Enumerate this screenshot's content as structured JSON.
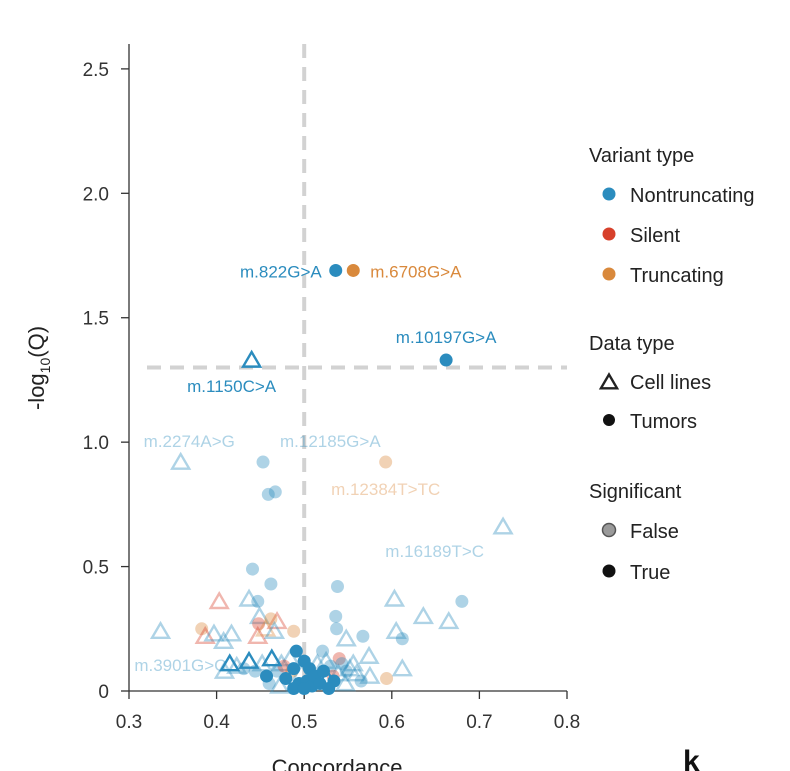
{
  "chart_data": {
    "type": "scatter",
    "xlabel": "Concordance",
    "ylabel_main": "-log",
    "ylabel_sub": "10",
    "ylabel_tail": "(Q)",
    "xlim": [
      0.3,
      0.8
    ],
    "ylim": [
      0,
      2.6
    ],
    "xticks": [
      0.3,
      0.4,
      0.5,
      0.6,
      0.7,
      0.8
    ],
    "xtick_labels": [
      "0.3",
      "0.4",
      "0.5",
      "0.6",
      "0.7",
      "0.8"
    ],
    "yticks": [
      0,
      0.5,
      1.0,
      1.5,
      2.0,
      2.5
    ],
    "ytick_labels": [
      "0",
      "0.5",
      "1.0",
      "1.5",
      "2.0",
      "2.5"
    ],
    "threshold_x": 0.5,
    "threshold_y": 1.3,
    "colors": {
      "Nontruncating": "#2b8cbe",
      "Silent": "#d7402b",
      "Truncating": "#d9893c",
      "legend_outline": "#222222",
      "legend_false": "#9a9a9a",
      "legend_true": "#111111",
      "guide": "#d2d2d2",
      "axis": "#333333"
    },
    "points": [
      {
        "x": 0.536,
        "y": 1.69,
        "type": "Nontruncating",
        "data": "Tumors",
        "sig": true
      },
      {
        "x": 0.556,
        "y": 1.69,
        "type": "Truncating",
        "data": "Tumors",
        "sig": true
      },
      {
        "x": 0.662,
        "y": 1.33,
        "type": "Nontruncating",
        "data": "Tumors",
        "sig": true
      },
      {
        "x": 0.44,
        "y": 1.33,
        "type": "Nontruncating",
        "data": "Cell lines",
        "sig": true
      },
      {
        "x": 0.359,
        "y": 0.92,
        "type": "Nontruncating",
        "data": "Cell lines",
        "sig": false
      },
      {
        "x": 0.453,
        "y": 0.92,
        "type": "Nontruncating",
        "data": "Tumors",
        "sig": false
      },
      {
        "x": 0.593,
        "y": 0.92,
        "type": "Truncating",
        "data": "Tumors",
        "sig": false
      },
      {
        "x": 0.459,
        "y": 0.79,
        "type": "Nontruncating",
        "data": "Tumors",
        "sig": false
      },
      {
        "x": 0.467,
        "y": 0.8,
        "type": "Nontruncating",
        "data": "Tumors",
        "sig": false
      },
      {
        "x": 0.727,
        "y": 0.66,
        "type": "Nontruncating",
        "data": "Cell lines",
        "sig": false
      },
      {
        "x": 0.441,
        "y": 0.49,
        "type": "Nontruncating",
        "data": "Tumors",
        "sig": false
      },
      {
        "x": 0.462,
        "y": 0.43,
        "type": "Nontruncating",
        "data": "Tumors",
        "sig": false
      },
      {
        "x": 0.538,
        "y": 0.42,
        "type": "Nontruncating",
        "data": "Tumors",
        "sig": false
      },
      {
        "x": 0.68,
        "y": 0.36,
        "type": "Nontruncating",
        "data": "Tumors",
        "sig": false
      },
      {
        "x": 0.447,
        "y": 0.36,
        "type": "Nontruncating",
        "data": "Tumors",
        "sig": false
      },
      {
        "x": 0.437,
        "y": 0.37,
        "type": "Nontruncating",
        "data": "Cell lines",
        "sig": false
      },
      {
        "x": 0.403,
        "y": 0.36,
        "type": "Silent",
        "data": "Cell lines",
        "sig": false
      },
      {
        "x": 0.603,
        "y": 0.37,
        "type": "Nontruncating",
        "data": "Cell lines",
        "sig": false
      },
      {
        "x": 0.636,
        "y": 0.3,
        "type": "Nontruncating",
        "data": "Cell lines",
        "sig": false
      },
      {
        "x": 0.665,
        "y": 0.28,
        "type": "Nontruncating",
        "data": "Cell lines",
        "sig": false
      },
      {
        "x": 0.469,
        "y": 0.28,
        "type": "Silent",
        "data": "Cell lines",
        "sig": false
      },
      {
        "x": 0.449,
        "y": 0.3,
        "type": "Nontruncating",
        "data": "Cell lines",
        "sig": false
      },
      {
        "x": 0.536,
        "y": 0.3,
        "type": "Nontruncating",
        "data": "Tumors",
        "sig": false
      },
      {
        "x": 0.448,
        "y": 0.27,
        "type": "Silent",
        "data": "Tumors",
        "sig": false
      },
      {
        "x": 0.462,
        "y": 0.29,
        "type": "Truncating",
        "data": "Tumors",
        "sig": false
      },
      {
        "x": 0.336,
        "y": 0.24,
        "type": "Nontruncating",
        "data": "Cell lines",
        "sig": false
      },
      {
        "x": 0.383,
        "y": 0.25,
        "type": "Truncating",
        "data": "Tumors",
        "sig": false
      },
      {
        "x": 0.387,
        "y": 0.22,
        "type": "Silent",
        "data": "Cell lines",
        "sig": false
      },
      {
        "x": 0.397,
        "y": 0.23,
        "type": "Nontruncating",
        "data": "Cell lines",
        "sig": false
      },
      {
        "x": 0.408,
        "y": 0.2,
        "type": "Nontruncating",
        "data": "Cell lines",
        "sig": false
      },
      {
        "x": 0.417,
        "y": 0.23,
        "type": "Nontruncating",
        "data": "Cell lines",
        "sig": false
      },
      {
        "x": 0.447,
        "y": 0.22,
        "type": "Silent",
        "data": "Cell lines",
        "sig": false
      },
      {
        "x": 0.456,
        "y": 0.25,
        "type": "Truncating",
        "data": "Cell lines",
        "sig": false
      },
      {
        "x": 0.466,
        "y": 0.24,
        "type": "Nontruncating",
        "data": "Cell lines",
        "sig": false
      },
      {
        "x": 0.488,
        "y": 0.24,
        "type": "Truncating",
        "data": "Tumors",
        "sig": false
      },
      {
        "x": 0.537,
        "y": 0.25,
        "type": "Nontruncating",
        "data": "Tumors",
        "sig": false
      },
      {
        "x": 0.548,
        "y": 0.21,
        "type": "Nontruncating",
        "data": "Cell lines",
        "sig": false
      },
      {
        "x": 0.567,
        "y": 0.22,
        "type": "Nontruncating",
        "data": "Tumors",
        "sig": false
      },
      {
        "x": 0.605,
        "y": 0.24,
        "type": "Nontruncating",
        "data": "Cell lines",
        "sig": false
      },
      {
        "x": 0.612,
        "y": 0.21,
        "type": "Nontruncating",
        "data": "Tumors",
        "sig": false
      },
      {
        "x": 0.612,
        "y": 0.09,
        "type": "Nontruncating",
        "data": "Cell lines",
        "sig": false
      },
      {
        "x": 0.574,
        "y": 0.14,
        "type": "Nontruncating",
        "data": "Cell lines",
        "sig": false
      },
      {
        "x": 0.556,
        "y": 0.11,
        "type": "Nontruncating",
        "data": "Cell lines",
        "sig": false
      },
      {
        "x": 0.548,
        "y": 0.08,
        "type": "Nontruncating",
        "data": "Tumors",
        "sig": false
      },
      {
        "x": 0.525,
        "y": 0.12,
        "type": "Nontruncating",
        "data": "Cell lines",
        "sig": false
      },
      {
        "x": 0.521,
        "y": 0.16,
        "type": "Nontruncating",
        "data": "Tumors",
        "sig": false
      },
      {
        "x": 0.54,
        "y": 0.13,
        "type": "Silent",
        "data": "Tumors",
        "sig": false
      },
      {
        "x": 0.56,
        "y": 0.07,
        "type": "Nontruncating",
        "data": "Cell lines",
        "sig": false
      },
      {
        "x": 0.575,
        "y": 0.06,
        "type": "Nontruncating",
        "data": "Cell lines",
        "sig": false
      },
      {
        "x": 0.594,
        "y": 0.05,
        "type": "Truncating",
        "data": "Tumors",
        "sig": false
      },
      {
        "x": 0.409,
        "y": 0.08,
        "type": "Nontruncating",
        "data": "Cell lines",
        "sig": false
      },
      {
        "x": 0.415,
        "y": 0.11,
        "type": "Nontruncating",
        "data": "Cell lines",
        "sig": true
      },
      {
        "x": 0.423,
        "y": 0.1,
        "type": "Nontruncating",
        "data": "Cell lines",
        "sig": false
      },
      {
        "x": 0.431,
        "y": 0.09,
        "type": "Nontruncating",
        "data": "Tumors",
        "sig": false
      },
      {
        "x": 0.437,
        "y": 0.12,
        "type": "Nontruncating",
        "data": "Cell lines",
        "sig": true
      },
      {
        "x": 0.444,
        "y": 0.08,
        "type": "Nontruncating",
        "data": "Tumors",
        "sig": false
      },
      {
        "x": 0.452,
        "y": 0.11,
        "type": "Nontruncating",
        "data": "Cell lines",
        "sig": false
      },
      {
        "x": 0.457,
        "y": 0.06,
        "type": "Nontruncating",
        "data": "Tumors",
        "sig": true
      },
      {
        "x": 0.463,
        "y": 0.13,
        "type": "Nontruncating",
        "data": "Cell lines",
        "sig": true
      },
      {
        "x": 0.469,
        "y": 0.08,
        "type": "Nontruncating",
        "data": "Tumors",
        "sig": false
      },
      {
        "x": 0.474,
        "y": 0.11,
        "type": "Nontruncating",
        "data": "Cell lines",
        "sig": false
      },
      {
        "x": 0.479,
        "y": 0.05,
        "type": "Nontruncating",
        "data": "Tumors",
        "sig": true
      },
      {
        "x": 0.484,
        "y": 0.13,
        "type": "Nontruncating",
        "data": "Cell lines",
        "sig": false
      },
      {
        "x": 0.488,
        "y": 0.09,
        "type": "Nontruncating",
        "data": "Tumors",
        "sig": true
      },
      {
        "x": 0.491,
        "y": 0.16,
        "type": "Nontruncating",
        "data": "Tumors",
        "sig": true
      },
      {
        "x": 0.494,
        "y": 0.03,
        "type": "Nontruncating",
        "data": "Tumors",
        "sig": true
      },
      {
        "x": 0.497,
        "y": 0.07,
        "type": "Nontruncating",
        "data": "Cell lines",
        "sig": false
      },
      {
        "x": 0.5,
        "y": 0.12,
        "type": "Nontruncating",
        "data": "Tumors",
        "sig": true
      },
      {
        "x": 0.503,
        "y": 0.04,
        "type": "Nontruncating",
        "data": "Tumors",
        "sig": true
      },
      {
        "x": 0.506,
        "y": 0.09,
        "type": "Nontruncating",
        "data": "Tumors",
        "sig": true
      },
      {
        "x": 0.509,
        "y": 0.02,
        "type": "Nontruncating",
        "data": "Tumors",
        "sig": true
      },
      {
        "x": 0.512,
        "y": 0.06,
        "type": "Nontruncating",
        "data": "Tumors",
        "sig": true
      },
      {
        "x": 0.515,
        "y": 0.11,
        "type": "Nontruncating",
        "data": "Cell lines",
        "sig": false
      },
      {
        "x": 0.518,
        "y": 0.03,
        "type": "Nontruncating",
        "data": "Tumors",
        "sig": true
      },
      {
        "x": 0.522,
        "y": 0.08,
        "type": "Nontruncating",
        "data": "Tumors",
        "sig": true
      },
      {
        "x": 0.526,
        "y": 0.05,
        "type": "Nontruncating",
        "data": "Cell lines",
        "sig": true
      },
      {
        "x": 0.53,
        "y": 0.1,
        "type": "Nontruncating",
        "data": "Tumors",
        "sig": false
      },
      {
        "x": 0.534,
        "y": 0.04,
        "type": "Nontruncating",
        "data": "Tumors",
        "sig": true
      },
      {
        "x": 0.539,
        "y": 0.07,
        "type": "Nontruncating",
        "data": "Cell lines",
        "sig": false
      },
      {
        "x": 0.543,
        "y": 0.11,
        "type": "Nontruncating",
        "data": "Tumors",
        "sig": false
      },
      {
        "x": 0.547,
        "y": 0.03,
        "type": "Nontruncating",
        "data": "Cell lines",
        "sig": false
      },
      {
        "x": 0.552,
        "y": 0.09,
        "type": "Nontruncating",
        "data": "Cell lines",
        "sig": false
      },
      {
        "x": 0.565,
        "y": 0.04,
        "type": "Nontruncating",
        "data": "Tumors",
        "sig": false
      },
      {
        "x": 0.488,
        "y": 0.01,
        "type": "Nontruncating",
        "data": "Tumors",
        "sig": true
      },
      {
        "x": 0.5,
        "y": 0.01,
        "type": "Nontruncating",
        "data": "Tumors",
        "sig": true
      },
      {
        "x": 0.472,
        "y": 0.02,
        "type": "Nontruncating",
        "data": "Cell lines",
        "sig": false
      },
      {
        "x": 0.528,
        "y": 0.01,
        "type": "Nontruncating",
        "data": "Tumors",
        "sig": true
      },
      {
        "x": 0.46,
        "y": 0.03,
        "type": "Nontruncating",
        "data": "Tumors",
        "sig": false
      },
      {
        "x": 0.486,
        "y": 0.08,
        "type": "Truncating",
        "data": "Tumors",
        "sig": false
      },
      {
        "x": 0.477,
        "y": 0.1,
        "type": "Silent",
        "data": "Tumors",
        "sig": false
      },
      {
        "x": 0.533,
        "y": 0.06,
        "type": "Silent",
        "data": "Tumors",
        "sig": false
      }
    ],
    "annotations": [
      {
        "text": "m.822G>A",
        "x": 0.536,
        "y": 1.69,
        "color": "#2b8cbe",
        "sig": true,
        "anchor": "end",
        "dx": -14,
        "dy": 7
      },
      {
        "text": "m.6708G>A",
        "x": 0.556,
        "y": 1.69,
        "color": "#d9893c",
        "sig": true,
        "anchor": "start",
        "dx": 17,
        "dy": 7
      },
      {
        "text": "m.10197G>A",
        "x": 0.662,
        "y": 1.33,
        "color": "#2b8cbe",
        "sig": true,
        "anchor": "middle",
        "dx": 0,
        "dy": -17
      },
      {
        "text": "m.1150C>A",
        "x": 0.44,
        "y": 1.33,
        "color": "#2b8cbe",
        "sig": true,
        "anchor": "middle",
        "dx": -20,
        "dy": 32
      },
      {
        "text": "m.2274A>G",
        "x": 0.359,
        "y": 0.92,
        "color": "#2b8cbe",
        "sig": false,
        "anchor": "start",
        "dx": -37,
        "dy": -15
      },
      {
        "text": "m.12185G>A",
        "x": 0.453,
        "y": 0.92,
        "color": "#2b8cbe",
        "sig": false,
        "anchor": "start",
        "dx": 17,
        "dy": -15
      },
      {
        "text": "m.12384T>TC",
        "x": 0.593,
        "y": 0.92,
        "color": "#d9893c",
        "sig": false,
        "anchor": "middle",
        "dx": 0,
        "dy": 33
      },
      {
        "text": "m.16189T>C",
        "x": 0.727,
        "y": 0.66,
        "color": "#2b8cbe",
        "sig": false,
        "anchor": "end",
        "dx": -19,
        "dy": 30
      },
      {
        "text": "m.3901G>C",
        "x": 0.409,
        "y": 0.08,
        "color": "#2b8cbe",
        "sig": false,
        "anchor": "end",
        "dx": 2,
        "dy": 0
      }
    ],
    "legend": {
      "variant_title": "Variant type",
      "variant_items": [
        {
          "label": "Nontruncating",
          "color": "#2b8cbe"
        },
        {
          "label": "Silent",
          "color": "#d7402b"
        },
        {
          "label": "Truncating",
          "color": "#d9893c"
        }
      ],
      "data_title": "Data type",
      "data_items": [
        {
          "label": "Cell lines",
          "shape": "triangle"
        },
        {
          "label": "Tumors",
          "shape": "circle"
        }
      ],
      "sig_title": "Significant",
      "sig_items": [
        {
          "label": "False",
          "style": "faded"
        },
        {
          "label": "True",
          "style": "solid"
        }
      ]
    },
    "panel_letter": "k"
  }
}
